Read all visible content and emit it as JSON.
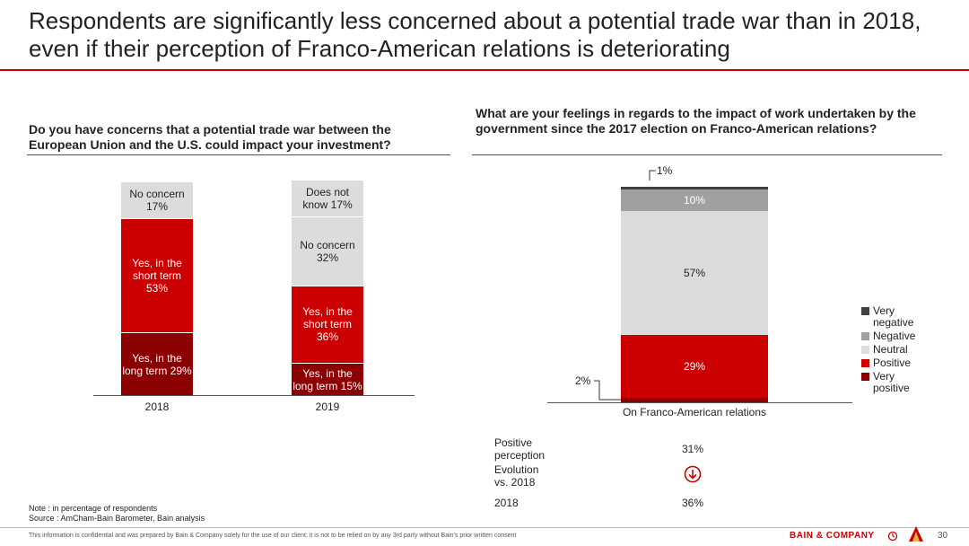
{
  "title": "Respondents are significantly less concerned about a potential trade war than in 2018, even if their perception of Franco-American relations is deteriorating",
  "left": {
    "question": "Do you have concerns that a potential trade war between the European Union and the U.S. could impact your investment?"
  },
  "right": {
    "question": "What are your feelings in regards to the impact of work undertaken by the government since the 2017 election on Franco-American relations?"
  },
  "chart_data": [
    {
      "type": "bar",
      "stacked": true,
      "categories": [
        "2018",
        "2019"
      ],
      "series": [
        {
          "name": "Yes, in the long term",
          "values": [
            29,
            15
          ],
          "color": "#8b0000"
        },
        {
          "name": "Yes, in the short term",
          "values": [
            53,
            36
          ],
          "color": "#cc0000"
        },
        {
          "name": "No concern",
          "values": [
            17,
            32
          ],
          "color": "#dcdcdc"
        },
        {
          "name": "Does not know",
          "values": [
            null,
            17
          ],
          "color": "#dcdcdc"
        }
      ],
      "segment_labels": [
        [
          "Yes, in the\nlong term 29%",
          "Yes, in the\nshort term\n53%",
          "No concern\n17%"
        ],
        [
          "Yes, in the\nlong term 15%",
          "Yes, in the\nshort term\n36%",
          "No concern\n32%",
          "Does not\nknow 17%"
        ]
      ]
    },
    {
      "type": "bar",
      "stacked": true,
      "categories": [
        "On Franco-American relations"
      ],
      "series": [
        {
          "name": "Very positive",
          "values": [
            2
          ],
          "color": "#8b0000"
        },
        {
          "name": "Positive",
          "values": [
            29
          ],
          "color": "#cc0000"
        },
        {
          "name": "Neutral",
          "values": [
            57
          ],
          "color": "#dcdcdc"
        },
        {
          "name": "Negative",
          "values": [
            10
          ],
          "color": "#a0a0a0"
        },
        {
          "name": "Very negative",
          "values": [
            1
          ],
          "color": "#404040"
        }
      ],
      "segment_labels": [
        "2%",
        "29%",
        "57%",
        "10%",
        "1%"
      ],
      "legend": [
        "Very\nnegative",
        "Negative",
        "Neutral",
        "Positive",
        "Very\npositive"
      ],
      "legend_position": "right"
    }
  ],
  "summary": {
    "positive_label": "Positive\nperception",
    "positive_value": "31%",
    "evolution_label": "Evolution\nvs. 2018",
    "evolution_icon": "down-arrow-circle-icon",
    "year_label": "2018",
    "year_value": "36%"
  },
  "note": "Note : in percentage of respondents",
  "source": "Source : AmCham-Bain Barometer, Bain analysis",
  "disclaimer": "This information is confidential and was prepared by Bain & Company solely for the use of our client; it is not to be relied on by any 3rd party without Bain's prior written consent",
  "brand": "BAIN & COMPANY",
  "page_number": "30"
}
